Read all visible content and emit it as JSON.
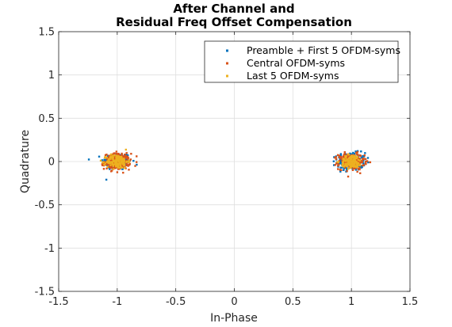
{
  "chart_data": {
    "type": "scatter",
    "title": [
      "After Channel and",
      "Residual Freq Offset Compensation"
    ],
    "xlabel": "In-Phase",
    "ylabel": "Quadrature",
    "xlim": [
      -1.5,
      1.5
    ],
    "ylim": [
      -1.5,
      1.5
    ],
    "xticks": [
      -1.5,
      -1,
      -0.5,
      0,
      0.5,
      1,
      1.5
    ],
    "yticks": [
      -1.5,
      -1,
      -0.5,
      0,
      0.5,
      1,
      1.5
    ],
    "xtick_labels": [
      "-1.5",
      "-1",
      "-0.5",
      "0",
      "0.5",
      "1",
      "1.5"
    ],
    "ytick_labels": [
      "-1.5",
      "-1",
      "-0.5",
      "0",
      "0.5",
      "1",
      "1.5"
    ],
    "grid": true,
    "legend_position": "top-right",
    "series": [
      {
        "name": "Preamble + First 5 OFDM-syms",
        "color": "#0072BD",
        "clusters": [
          {
            "center": [
              -1.0,
              0.0
            ],
            "spread": [
              0.06,
              0.05
            ],
            "count": 180
          },
          {
            "center": [
              1.0,
              0.0
            ],
            "spread": [
              0.06,
              0.05
            ],
            "count": 180
          }
        ]
      },
      {
        "name": "Central OFDM-syms",
        "color": "#D95319",
        "clusters": [
          {
            "center": [
              -1.0,
              0.0
            ],
            "spread": [
              0.055,
              0.045
            ],
            "count": 260
          },
          {
            "center": [
              1.0,
              0.0
            ],
            "spread": [
              0.055,
              0.045
            ],
            "count": 260
          }
        ]
      },
      {
        "name": "Last 5 OFDM-syms",
        "color": "#EDB120",
        "clusters": [
          {
            "center": [
              -1.0,
              0.0
            ],
            "spread": [
              0.045,
              0.04
            ],
            "count": 140
          },
          {
            "center": [
              1.0,
              0.0
            ],
            "spread": [
              0.045,
              0.04
            ],
            "count": 140
          }
        ]
      }
    ]
  }
}
